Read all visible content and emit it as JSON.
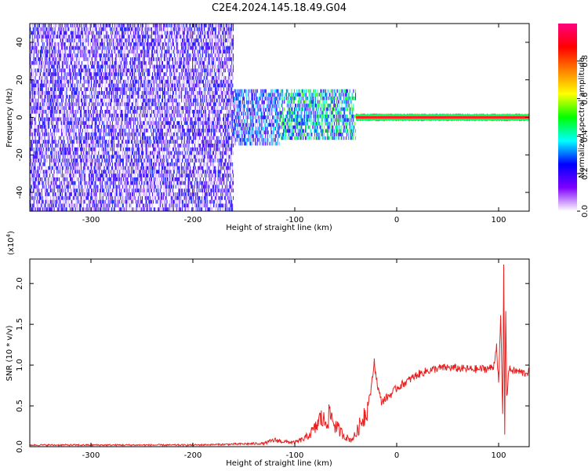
{
  "title": "C2E4.2024.145.18.49.G04",
  "charts": {
    "spectrogram": {
      "chart_data": {
        "type": "heatmap",
        "xlabel": "Height of straight line (km)",
        "ylabel": "Frequency (Hz)",
        "xlim": [
          -360,
          130
        ],
        "ylim": [
          -50,
          50
        ],
        "xticks": [
          -300,
          -200,
          -100,
          0,
          100
        ],
        "yticks": [
          -40,
          -20,
          0,
          20,
          40
        ],
        "xtick_labels": [
          "-300",
          "-200",
          "-100",
          "0",
          "100"
        ],
        "ytick_labels": [
          "-40",
          "-20",
          "0",
          "20",
          "40"
        ],
        "colorbar": {
          "label": "Normalized spectral amplitude",
          "range": [
            0.0,
            1.0
          ],
          "ticks": [
            0.0,
            0.2,
            0.4,
            0.6,
            0.8
          ],
          "tick_labels": [
            "0.0",
            "0.2",
            "0.4",
            "0.6",
            "0.8"
          ],
          "colors": [
            "#ffffff",
            "#7f00ff",
            "#0000ff",
            "#00ffff",
            "#00ff00",
            "#ffff00",
            "#ff8000",
            "#ff0000",
            "#ff0080"
          ]
        },
        "carrier_line": {
          "x_start": -40,
          "x_end": 130,
          "freq": 0,
          "color": "#ff2020",
          "edge_color": "#00ff60"
        },
        "regions": [
          {
            "x": [
              -360,
              -160
            ],
            "freq_span": [
              -50,
              50
            ],
            "amplitude": 0.25
          },
          {
            "x": [
              -160,
              -115
            ],
            "freq_span": [
              -15,
              15
            ],
            "amplitude": 0.35
          },
          {
            "x": [
              -115,
              -40
            ],
            "freq_span": [
              -12,
              15
            ],
            "amplitude": 0.5
          },
          {
            "x": [
              -40,
              130
            ],
            "freq_span": [
              -2,
              2
            ],
            "amplitude": 0.95
          }
        ]
      }
    },
    "snr": {
      "chart_data": {
        "type": "line",
        "xlabel": "Height of straight line (km)",
        "ylabel": "SNR (10 * v/v)",
        "scale_label": "(x10",
        "scale_exponent": "4",
        "scale_close": ")",
        "xlim": [
          -360,
          130
        ],
        "ylim": [
          0.0,
          2.3
        ],
        "xticks": [
          -300,
          -200,
          -100,
          0,
          100
        ],
        "yticks": [
          0.0,
          0.5,
          1.0,
          1.5,
          2.0
        ],
        "xtick_labels": [
          "-300",
          "-200",
          "-100",
          "0",
          "100"
        ],
        "ytick_labels": [
          "0.0",
          "0.5",
          "1.0",
          "1.5",
          "2.0"
        ],
        "series": [
          {
            "color": "#e82020",
            "x": [
              -360,
              -300,
              -250,
              -200,
              -160,
              -130,
              -120,
              -110,
              -100,
              -90,
              -80,
              -75,
              -70,
              -65,
              -60,
              -55,
              -50,
              -45,
              -40,
              -35,
              -30,
              -25,
              -22,
              -20,
              -18,
              -15,
              -10,
              -5,
              0,
              10,
              20,
              30,
              40,
              50,
              60,
              70,
              80,
              90,
              95,
              98,
              100,
              102,
              104,
              105,
              106,
              107,
              108,
              110,
              115,
              120,
              125,
              130
            ],
            "y": [
              0.02,
              0.02,
              0.02,
              0.02,
              0.03,
              0.04,
              0.08,
              0.06,
              0.05,
              0.1,
              0.22,
              0.35,
              0.3,
              0.4,
              0.25,
              0.18,
              0.12,
              0.08,
              0.15,
              0.3,
              0.45,
              0.7,
              1.05,
              0.85,
              0.7,
              0.55,
              0.6,
              0.65,
              0.72,
              0.8,
              0.88,
              0.93,
              0.96,
              0.97,
              0.96,
              0.95,
              0.95,
              0.96,
              0.97,
              1.25,
              0.75,
              1.6,
              0.4,
              2.25,
              0.2,
              1.7,
              0.6,
              0.95,
              0.93,
              0.92,
              0.9,
              0.92
            ]
          }
        ]
      }
    }
  }
}
